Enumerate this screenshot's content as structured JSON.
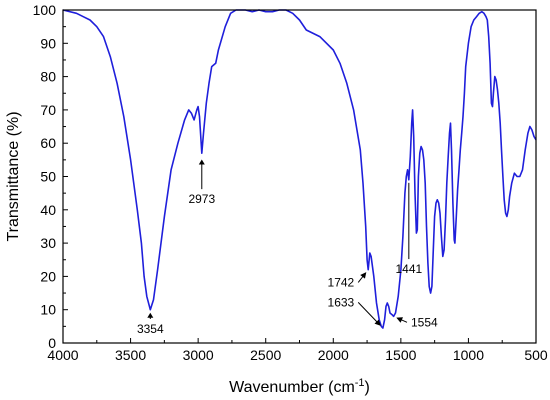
{
  "chart_data": {
    "type": "line",
    "title": "",
    "xlabel": "Wavenumber (cm",
    "xlabel_sup": "-1",
    "xlabel_close": ")",
    "ylabel": "Transmittance (%)",
    "xlim": [
      4000,
      500
    ],
    "ylim": [
      0,
      100
    ],
    "x_reversed": true,
    "grid": false,
    "legend": "none",
    "line_color": "#1f1fdb",
    "x_ticks": [
      "4000",
      "3500",
      "3000",
      "2500",
      "2000",
      "1500",
      "1000",
      "500"
    ],
    "y_ticks": [
      "0",
      "10",
      "20",
      "30",
      "40",
      "50",
      "60",
      "70",
      "80",
      "90",
      "100"
    ],
    "series": [
      {
        "points": [
          [
            4000,
            100
          ],
          [
            3900,
            99
          ],
          [
            3850,
            98
          ],
          [
            3800,
            97
          ],
          [
            3750,
            95
          ],
          [
            3700,
            92
          ],
          [
            3650,
            86
          ],
          [
            3600,
            78
          ],
          [
            3550,
            68
          ],
          [
            3500,
            55
          ],
          [
            3450,
            40
          ],
          [
            3420,
            30
          ],
          [
            3400,
            20
          ],
          [
            3380,
            14
          ],
          [
            3354,
            10
          ],
          [
            3330,
            13
          ],
          [
            3300,
            22
          ],
          [
            3250,
            38
          ],
          [
            3200,
            52
          ],
          [
            3150,
            60
          ],
          [
            3100,
            67
          ],
          [
            3070,
            70
          ],
          [
            3050,
            69
          ],
          [
            3030,
            67
          ],
          [
            3010,
            70
          ],
          [
            3000,
            71
          ],
          [
            2990,
            68
          ],
          [
            2973,
            57
          ],
          [
            2960,
            63
          ],
          [
            2940,
            72
          ],
          [
            2920,
            78
          ],
          [
            2900,
            83
          ],
          [
            2870,
            84
          ],
          [
            2850,
            88
          ],
          [
            2800,
            95
          ],
          [
            2760,
            99
          ],
          [
            2720,
            100
          ],
          [
            2650,
            100
          ],
          [
            2600,
            99.5
          ],
          [
            2550,
            100
          ],
          [
            2500,
            99.5
          ],
          [
            2450,
            99.5
          ],
          [
            2400,
            100
          ],
          [
            2350,
            100
          ],
          [
            2300,
            99
          ],
          [
            2250,
            97
          ],
          [
            2200,
            94
          ],
          [
            2100,
            92
          ],
          [
            2000,
            88
          ],
          [
            1950,
            84
          ],
          [
            1900,
            78
          ],
          [
            1850,
            70
          ],
          [
            1800,
            58
          ],
          [
            1780,
            48
          ],
          [
            1760,
            35
          ],
          [
            1750,
            25
          ],
          [
            1742,
            22
          ],
          [
            1730,
            27
          ],
          [
            1720,
            26
          ],
          [
            1700,
            20
          ],
          [
            1680,
            12
          ],
          [
            1660,
            7
          ],
          [
            1645,
            5
          ],
          [
            1633,
            4.5
          ],
          [
            1620,
            7
          ],
          [
            1610,
            11
          ],
          [
            1600,
            12
          ],
          [
            1590,
            11
          ],
          [
            1580,
            9
          ],
          [
            1565,
            8.5
          ],
          [
            1554,
            8
          ],
          [
            1540,
            9
          ],
          [
            1520,
            14
          ],
          [
            1500,
            22
          ],
          [
            1485,
            32
          ],
          [
            1470,
            45
          ],
          [
            1460,
            50
          ],
          [
            1450,
            52
          ],
          [
            1441,
            49
          ],
          [
            1430,
            56
          ],
          [
            1420,
            66
          ],
          [
            1413,
            70
          ],
          [
            1405,
            62
          ],
          [
            1395,
            45
          ],
          [
            1385,
            33
          ],
          [
            1378,
            34
          ],
          [
            1370,
            50
          ],
          [
            1360,
            57
          ],
          [
            1350,
            59
          ],
          [
            1340,
            58
          ],
          [
            1330,
            55
          ],
          [
            1320,
            48
          ],
          [
            1310,
            35
          ],
          [
            1300,
            24
          ],
          [
            1290,
            17
          ],
          [
            1280,
            15
          ],
          [
            1270,
            17
          ],
          [
            1260,
            28
          ],
          [
            1250,
            38
          ],
          [
            1240,
            42
          ],
          [
            1230,
            43
          ],
          [
            1220,
            42
          ],
          [
            1210,
            39
          ],
          [
            1200,
            32
          ],
          [
            1190,
            26
          ],
          [
            1180,
            28
          ],
          [
            1170,
            37
          ],
          [
            1160,
            48
          ],
          [
            1150,
            56
          ],
          [
            1140,
            63
          ],
          [
            1133,
            66
          ],
          [
            1125,
            58
          ],
          [
            1115,
            42
          ],
          [
            1105,
            31
          ],
          [
            1100,
            30
          ],
          [
            1090,
            38
          ],
          [
            1080,
            46
          ],
          [
            1070,
            52
          ],
          [
            1060,
            58
          ],
          [
            1050,
            63
          ],
          [
            1040,
            68
          ],
          [
            1030,
            75
          ],
          [
            1020,
            83
          ],
          [
            1000,
            90
          ],
          [
            980,
            95
          ],
          [
            960,
            97
          ],
          [
            940,
            98
          ],
          [
            920,
            99
          ],
          [
            900,
            99.5
          ],
          [
            885,
            99
          ],
          [
            870,
            98
          ],
          [
            860,
            97
          ],
          [
            850,
            92
          ],
          [
            840,
            84
          ],
          [
            830,
            72
          ],
          [
            822,
            71
          ],
          [
            815,
            75
          ],
          [
            805,
            80
          ],
          [
            795,
            79
          ],
          [
            785,
            76
          ],
          [
            775,
            72
          ],
          [
            765,
            66
          ],
          [
            755,
            58
          ],
          [
            745,
            50
          ],
          [
            735,
            43
          ],
          [
            725,
            39
          ],
          [
            715,
            38
          ],
          [
            705,
            40
          ],
          [
            695,
            44
          ],
          [
            680,
            48
          ],
          [
            660,
            51
          ],
          [
            640,
            50
          ],
          [
            620,
            50
          ],
          [
            600,
            52
          ],
          [
            580,
            58
          ],
          [
            560,
            63
          ],
          [
            545,
            65
          ],
          [
            530,
            64
          ],
          [
            515,
            62
          ],
          [
            500,
            61
          ]
        ]
      }
    ],
    "annotations": [
      {
        "label": "3354",
        "x": 3354,
        "y": 10,
        "text_x": 3354,
        "text_y": 3,
        "arrow": "up"
      },
      {
        "label": "2973",
        "x": 2973,
        "y": 56,
        "text_x": 2973,
        "text_y": 42,
        "arrow": "up"
      },
      {
        "label": "1742",
        "x": 1742,
        "y": 22,
        "text_x": 1845,
        "text_y": 17,
        "arrow": "diag"
      },
      {
        "label": "1633",
        "x": 1633,
        "y": 4.5,
        "text_x": 1845,
        "text_y": 11,
        "arrow": "diag"
      },
      {
        "label": "1554",
        "x": 1554,
        "y": 8,
        "text_x": 1425,
        "text_y": 5,
        "arrow": "diag"
      },
      {
        "label": "1441",
        "x": 1441,
        "y": 49,
        "text_x": 1441,
        "text_y": 21,
        "arrow": "vline"
      }
    ]
  }
}
